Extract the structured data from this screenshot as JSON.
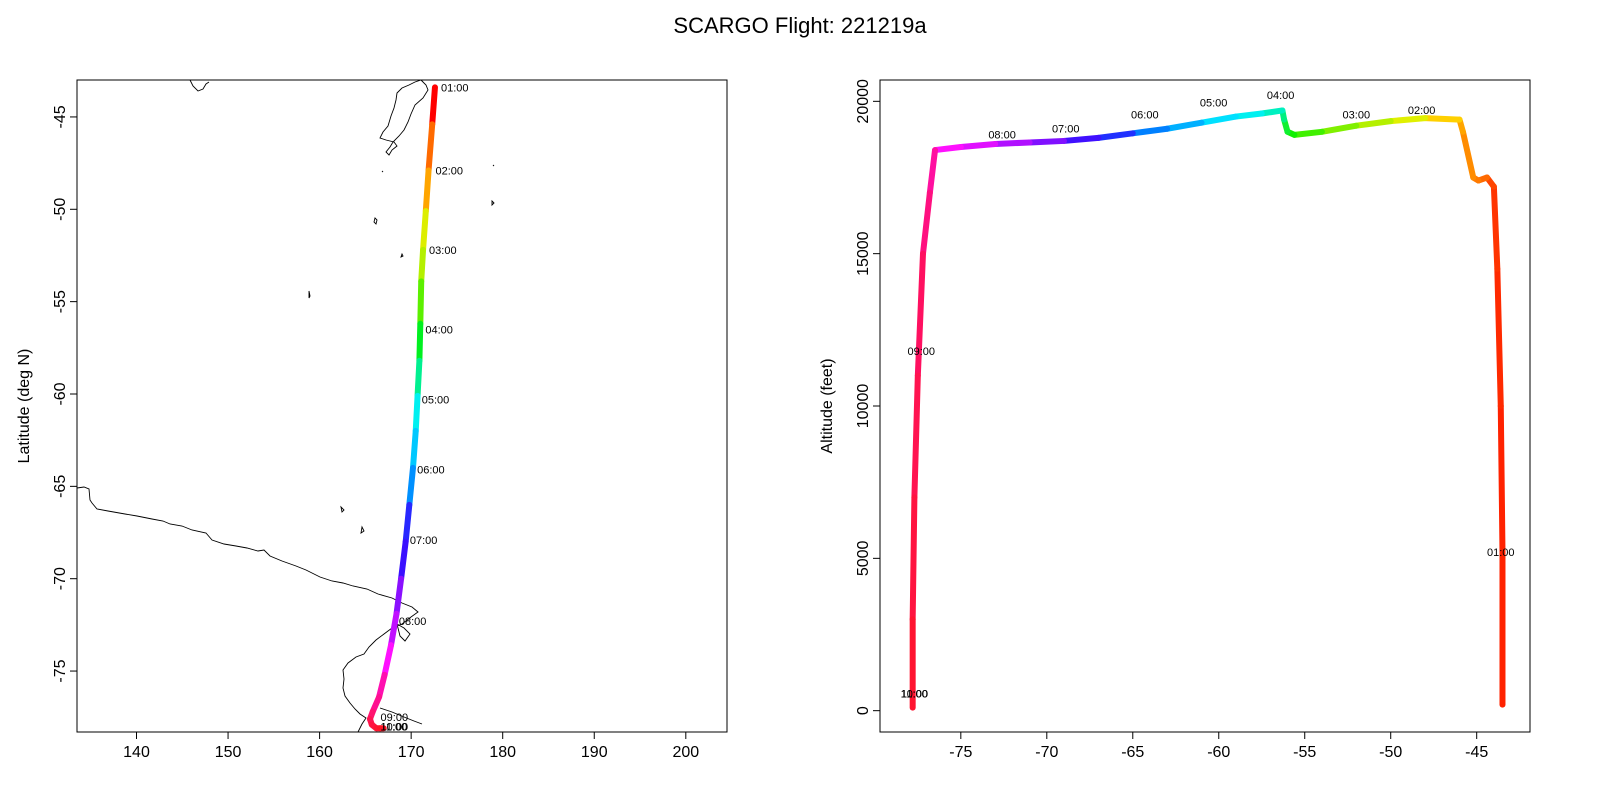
{
  "title": "SCARGO Flight: 221219a",
  "chart_data": [
    {
      "type": "line",
      "name": "map",
      "xlabel": "",
      "ylabel": "Latitude (deg N)",
      "xlim": [
        133.5,
        204.5
      ],
      "ylim": [
        -78.3,
        -43.0
      ],
      "xticks": [
        140,
        150,
        160,
        170,
        180,
        190,
        200
      ],
      "yticks": [
        -45,
        -50,
        -55,
        -60,
        -65,
        -70,
        -75
      ],
      "track": {
        "x": [
          172.6,
          172.3,
          171.9,
          171.6,
          171.3,
          171.1,
          171.0,
          170.9,
          170.7,
          170.5,
          170.2,
          169.8,
          169.4,
          168.9,
          168.4,
          167.8,
          167.1,
          166.5,
          165.8,
          165.5,
          165.7,
          166.2,
          166.6,
          167.0
        ],
        "y": [
          -43.4,
          -45.4,
          -47.9,
          -50.1,
          -52.2,
          -53.9,
          -56.2,
          -58.2,
          -60.1,
          -62.0,
          -64.0,
          -66.0,
          -68.0,
          -70.0,
          -71.9,
          -73.6,
          -75.2,
          -76.4,
          -77.2,
          -77.6,
          -77.9,
          -78.1,
          -78.1,
          -78.1
        ],
        "colors": [
          "#ff0000",
          "#ff6a00",
          "#ffa500",
          "#ddee00",
          "#b4f000",
          "#5cf000",
          "#00f020",
          "#00f090",
          "#00f0f0",
          "#00c8ff",
          "#0090ff",
          "#2828ff",
          "#3a10ff",
          "#8a10ff",
          "#c010ff",
          "#ff10ff",
          "#ff10b0",
          "#ff1090",
          "#ff1470",
          "#ff1450",
          "#ff1440",
          "#ff1430",
          "#ff1425",
          "#ff0000"
        ]
      },
      "time_labels": [
        {
          "text": "01:00",
          "x": 172.6,
          "y": -43.4
        },
        {
          "text": "02:00",
          "x": 172.0,
          "y": -47.9
        },
        {
          "text": "03:00",
          "x": 171.3,
          "y": -52.2
        },
        {
          "text": "04:00",
          "x": 170.9,
          "y": -56.5
        },
        {
          "text": "05:00",
          "x": 170.5,
          "y": -60.3
        },
        {
          "text": "06:00",
          "x": 170.0,
          "y": -64.1
        },
        {
          "text": "07:00",
          "x": 169.2,
          "y": -67.9
        },
        {
          "text": "08:00",
          "x": 168.0,
          "y": -72.3
        },
        {
          "text": "09:00",
          "x": 166.0,
          "y": -77.5
        },
        {
          "text": "10:00",
          "x": 166.0,
          "y": -78.0
        },
        {
          "text": "11:00",
          "x": 166.0,
          "y": -78.0
        }
      ]
    },
    {
      "type": "line",
      "name": "altitude",
      "xlabel": "",
      "ylabel": "Altitude (feet)",
      "xlim": [
        -79.7,
        -41.9
      ],
      "ylim": [
        -700,
        20700
      ],
      "xticks": [
        -75,
        -70,
        -65,
        -60,
        -55,
        -50,
        -45
      ],
      "yticks": [
        0,
        5000,
        10000,
        15000,
        20000
      ],
      "track": {
        "x": [
          -43.5,
          -43.5,
          -43.6,
          -43.8,
          -44.0,
          -44.4,
          -44.9,
          -45.2,
          -45.8,
          -46.0,
          -48.0,
          -50.0,
          -52.0,
          -54.0,
          -55.6,
          -56.0,
          -56.2,
          -56.3,
          -57.5,
          -59.0,
          -61.0,
          -63.0,
          -65.0,
          -67.0,
          -69.0,
          -71.0,
          -73.0,
          -75.0,
          -76.5,
          -76.8,
          -77.2,
          -77.5,
          -77.7,
          -77.8,
          -77.8
        ],
        "y": [
          200,
          5200,
          10000,
          14500,
          17200,
          17500,
          17400,
          17500,
          19000,
          19400,
          19450,
          19350,
          19200,
          19000,
          18900,
          19000,
          19400,
          19700,
          19600,
          19500,
          19300,
          19100,
          18950,
          18800,
          18700,
          18650,
          18600,
          18500,
          18400,
          17000,
          15000,
          11000,
          7000,
          3000,
          100
        ],
        "colors": [
          "#ff2200",
          "#ff2200",
          "#ff2a00",
          "#ff3400",
          "#ff4500",
          "#ff6a00",
          "#ff7a00",
          "#ff8c00",
          "#ffa500",
          "#ffd000",
          "#e0f000",
          "#b4f000",
          "#80f000",
          "#40f000",
          "#10f000",
          "#10f030",
          "#00f080",
          "#00f0c0",
          "#00f0f0",
          "#00e0ff",
          "#00b0ff",
          "#0080ff",
          "#2030ff",
          "#4010ff",
          "#8010ff",
          "#b010ff",
          "#e010ff",
          "#ff10ff",
          "#ff10a0",
          "#ff1080",
          "#ff1060",
          "#ff1450",
          "#ff1440",
          "#ff1430",
          "#ff1430"
        ]
      },
      "time_labels": [
        {
          "text": "01:00",
          "x": -43.6,
          "y": 4950
        },
        {
          "text": "02:00",
          "x": -48.2,
          "y": 19450
        },
        {
          "text": "03:00",
          "x": -52.0,
          "y": 19300
        },
        {
          "text": "04:00",
          "x": -56.4,
          "y": 19950
        },
        {
          "text": "05:00",
          "x": -60.3,
          "y": 19700
        },
        {
          "text": "06:00",
          "x": -64.3,
          "y": 19300
        },
        {
          "text": "07:00",
          "x": -68.9,
          "y": 18850
        },
        {
          "text": "08:00",
          "x": -72.6,
          "y": 18650
        },
        {
          "text": "09:00",
          "x": -77.3,
          "y": 11550
        },
        {
          "text": "10:00",
          "x": -77.7,
          "y": 300
        },
        {
          "text": "11:00",
          "x": -77.7,
          "y": 300
        }
      ]
    }
  ]
}
